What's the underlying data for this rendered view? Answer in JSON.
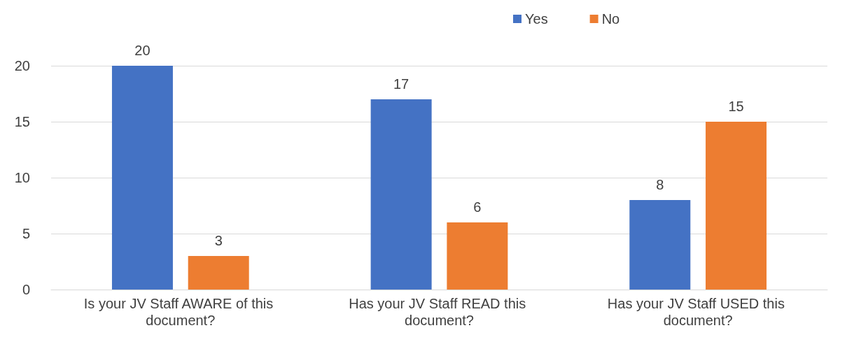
{
  "chart_data": {
    "type": "bar",
    "categories": [
      "Is your JV Staff AWARE of this document?",
      "Has your JV Staff READ this document?",
      "Has your JV Staff USED this document?"
    ],
    "series": [
      {
        "name": "Yes",
        "color": "#4472c4",
        "values": [
          20,
          17,
          8
        ]
      },
      {
        "name": "No",
        "color": "#ed7d31",
        "values": [
          3,
          6,
          15
        ]
      }
    ],
    "ylim": [
      0,
      20
    ],
    "yticks": [
      0,
      5,
      10,
      15,
      20
    ],
    "grid": "y",
    "legend": "top",
    "data_labels": true
  }
}
